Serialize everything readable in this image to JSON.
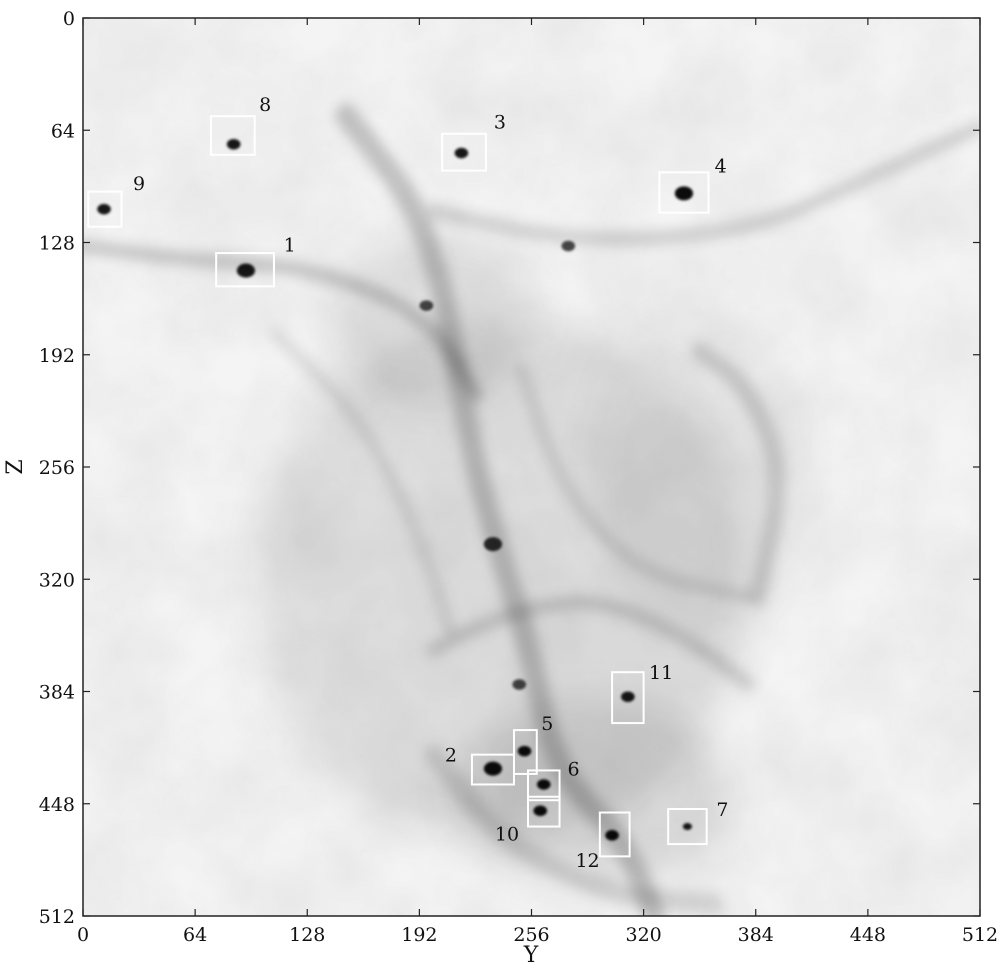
{
  "chart_data": {
    "type": "heatmap",
    "title": "",
    "xlabel": "Y",
    "ylabel": "Z",
    "xlim": [
      0,
      512
    ],
    "ylim": [
      0,
      512
    ],
    "y_inverted": true,
    "x_ticks": [
      0,
      64,
      128,
      192,
      256,
      320,
      384,
      448,
      512
    ],
    "y_ticks": [
      0,
      64,
      128,
      192,
      256,
      320,
      384,
      448,
      512
    ],
    "colormap": "grayscale-inverted",
    "grid": false,
    "boxes": [
      {
        "label": "1",
        "y": [
          76,
          109
        ],
        "z": [
          134,
          153
        ],
        "label_at": [
          118,
          133
        ]
      },
      {
        "label": "2",
        "y": [
          222,
          246
        ],
        "z": [
          420,
          437
        ],
        "label_at": [
          210,
          424
        ]
      },
      {
        "label": "3",
        "y": [
          205,
          230
        ],
        "z": [
          66,
          87
        ],
        "label_at": [
          238,
          63
        ]
      },
      {
        "label": "4",
        "y": [
          329,
          357
        ],
        "z": [
          88,
          111
        ],
        "label_at": [
          364,
          88
        ]
      },
      {
        "label": "5",
        "y": [
          246,
          259
        ],
        "z": [
          406,
          431
        ],
        "label_at": [
          265,
          406
        ]
      },
      {
        "label": "6",
        "y": [
          254,
          272
        ],
        "z": [
          429,
          446
        ],
        "label_at": [
          280,
          432
        ]
      },
      {
        "label": "7",
        "y": [
          334,
          356
        ],
        "z": [
          451,
          471
        ],
        "label_at": [
          365,
          455
        ]
      },
      {
        "label": "8",
        "y": [
          73,
          98
        ],
        "z": [
          56,
          78
        ],
        "label_at": [
          104,
          53
        ]
      },
      {
        "label": "9",
        "y": [
          3,
          22
        ],
        "z": [
          99,
          119
        ],
        "label_at": [
          32,
          98
        ]
      },
      {
        "label": "10",
        "y": [
          254,
          272
        ],
        "z": [
          444,
          461
        ],
        "label_at": [
          242,
          469
        ]
      },
      {
        "label": "11",
        "y": [
          302,
          320
        ],
        "z": [
          373,
          402
        ],
        "label_at": [
          330,
          377
        ]
      },
      {
        "label": "12",
        "y": [
          295,
          312
        ],
        "z": [
          453,
          478
        ],
        "label_at": [
          288,
          484
        ]
      }
    ],
    "dark_features": [
      {
        "y": 86,
        "z": 72,
        "r": 3,
        "o": 0.9
      },
      {
        "y": 93,
        "z": 144,
        "r": 4,
        "o": 0.9
      },
      {
        "y": 12,
        "z": 109,
        "r": 3,
        "o": 0.9
      },
      {
        "y": 216,
        "z": 77,
        "r": 3,
        "o": 0.9
      },
      {
        "y": 343,
        "z": 100,
        "r": 4,
        "o": 0.95
      },
      {
        "y": 277,
        "z": 130,
        "r": 3,
        "o": 0.7
      },
      {
        "y": 196,
        "z": 164,
        "r": 3,
        "o": 0.7
      },
      {
        "y": 234,
        "z": 300,
        "r": 4,
        "o": 0.8
      },
      {
        "y": 249,
        "z": 380,
        "r": 3,
        "o": 0.7
      },
      {
        "y": 311,
        "z": 387,
        "r": 3,
        "o": 0.9
      },
      {
        "y": 234,
        "z": 428,
        "r": 4,
        "o": 0.95
      },
      {
        "y": 252,
        "z": 418,
        "r": 3,
        "o": 0.95
      },
      {
        "y": 263,
        "z": 437,
        "r": 3,
        "o": 0.95
      },
      {
        "y": 261,
        "z": 452,
        "r": 3,
        "o": 0.95
      },
      {
        "y": 302,
        "z": 466,
        "r": 3,
        "o": 0.95
      },
      {
        "y": 345,
        "z": 461,
        "r": 2,
        "o": 0.9
      }
    ],
    "filaments": [
      {
        "points": [
          [
            0,
            130
          ],
          [
            60,
            138
          ],
          [
            130,
            142
          ],
          [
            195,
            168
          ],
          [
            225,
            215
          ]
        ],
        "w": 14,
        "o": 0.18
      },
      {
        "points": [
          [
            150,
            55
          ],
          [
            200,
            120
          ],
          [
            222,
            250
          ],
          [
            238,
            305
          ],
          [
            255,
            360
          ],
          [
            270,
            430
          ],
          [
            310,
            470
          ],
          [
            326,
            512
          ]
        ],
        "w": 22,
        "o": 0.2
      },
      {
        "points": [
          [
            200,
            110
          ],
          [
            280,
            128
          ],
          [
            380,
            122
          ],
          [
            440,
            95
          ],
          [
            512,
            62
          ]
        ],
        "w": 14,
        "o": 0.14
      },
      {
        "points": [
          [
            352,
            190
          ],
          [
            380,
            210
          ],
          [
            400,
            260
          ],
          [
            385,
            330
          ]
        ],
        "w": 18,
        "o": 0.14
      },
      {
        "points": [
          [
            200,
            360
          ],
          [
            240,
            340
          ],
          [
            290,
            330
          ],
          [
            340,
            350
          ],
          [
            380,
            380
          ]
        ],
        "w": 14,
        "o": 0.14
      },
      {
        "points": [
          [
            110,
            180
          ],
          [
            160,
            230
          ],
          [
            190,
            290
          ],
          [
            210,
            350
          ]
        ],
        "w": 12,
        "o": 0.1
      },
      {
        "points": [
          [
            250,
            200
          ],
          [
            270,
            260
          ],
          [
            300,
            300
          ],
          [
            330,
            320
          ],
          [
            380,
            330
          ]
        ],
        "w": 12,
        "o": 0.11
      },
      {
        "points": [
          [
            200,
            420
          ],
          [
            240,
            470
          ],
          [
            300,
            500
          ],
          [
            360,
            505
          ]
        ],
        "w": 20,
        "o": 0.12
      }
    ],
    "shading_blobs": [
      {
        "y": 240,
        "z": 320,
        "rx": 140,
        "ry": 150,
        "o": 0.09
      },
      {
        "y": 290,
        "z": 440,
        "rx": 80,
        "ry": 55,
        "o": 0.1
      },
      {
        "y": 350,
        "z": 260,
        "rx": 60,
        "ry": 90,
        "o": 0.06
      },
      {
        "y": 200,
        "z": 170,
        "rx": 60,
        "ry": 50,
        "o": 0.07
      }
    ]
  }
}
